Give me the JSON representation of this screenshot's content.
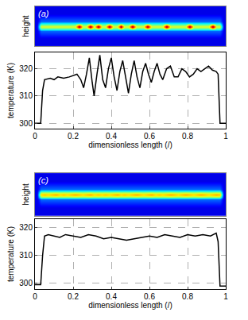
{
  "chart_data": [
    {
      "type": "heatmap",
      "annotation": "(a)",
      "ylabel": "height",
      "tick_labels": false,
      "xlim": [
        0,
        1
      ],
      "ylim": [
        0,
        1
      ],
      "zlim": [
        0,
        1
      ],
      "x": [
        0,
        0.02,
        0.04,
        0.06,
        0.08,
        0.1,
        0.12,
        0.14,
        0.16,
        0.18,
        0.2,
        0.22,
        0.24,
        0.26,
        0.28,
        0.3,
        0.32,
        0.34,
        0.36,
        0.38,
        0.4,
        0.42,
        0.44,
        0.46,
        0.48,
        0.5,
        0.52,
        0.54,
        0.56,
        0.58,
        0.6,
        0.62,
        0.64,
        0.66,
        0.68,
        0.7,
        0.72,
        0.74,
        0.76,
        0.78,
        0.8,
        0.82,
        0.84,
        0.86,
        0.88,
        0.9,
        0.92,
        0.94,
        0.96,
        0.98,
        1
      ],
      "y": [
        0,
        0.38,
        0.45,
        0.55,
        0.62,
        1
      ],
      "cells": [
        [
          0.1,
          0.1,
          0.1,
          0.1,
          0.1,
          0.1,
          0.1,
          0.1,
          0.1,
          0.1,
          0.1,
          0.1,
          0.1,
          0.1,
          0.1,
          0.1,
          0.1,
          0.1,
          0.1,
          0.1,
          0.1,
          0.1,
          0.1,
          0.1,
          0.1,
          0.1,
          0.1,
          0.1,
          0.1,
          0.1,
          0.1,
          0.1,
          0.1,
          0.1,
          0.1,
          0.1,
          0.1,
          0.1,
          0.1,
          0.1,
          0.1,
          0.1,
          0.1,
          0.1,
          0.1,
          0.1,
          0.1,
          0.1,
          0.1,
          0.1
        ],
        [
          0.1,
          0.35,
          0.35,
          0.35,
          0.35,
          0.35,
          0.35,
          0.35,
          0.35,
          0.35,
          0.35,
          0.35,
          0.35,
          0.35,
          0.35,
          0.35,
          0.35,
          0.35,
          0.35,
          0.35,
          0.35,
          0.35,
          0.35,
          0.35,
          0.35,
          0.35,
          0.35,
          0.35,
          0.35,
          0.35,
          0.35,
          0.35,
          0.35,
          0.35,
          0.35,
          0.35,
          0.35,
          0.35,
          0.35,
          0.35,
          0.35,
          0.35,
          0.35,
          0.35,
          0.35,
          0.35,
          0.35,
          0.35,
          0.35,
          0.1
        ],
        [
          0.1,
          0.6,
          0.6,
          0.6,
          0.6,
          0.6,
          0.6,
          0.6,
          0.6,
          0.6,
          0.6,
          1,
          0.6,
          0.6,
          1,
          0.6,
          1,
          0.6,
          0.6,
          1,
          0.6,
          0.6,
          1,
          0.6,
          0.6,
          1,
          0.6,
          0.6,
          0.6,
          1,
          0.6,
          0.6,
          0.6,
          0.6,
          1,
          0.6,
          0.6,
          0.6,
          0.6,
          0.6,
          1,
          0.6,
          0.6,
          0.6,
          0.6,
          0.6,
          1,
          0.6,
          0.6,
          0.1
        ],
        [
          0.1,
          0.35,
          0.35,
          0.35,
          0.35,
          0.35,
          0.35,
          0.35,
          0.35,
          0.35,
          0.35,
          0.35,
          0.35,
          0.35,
          0.35,
          0.35,
          0.35,
          0.35,
          0.35,
          0.35,
          0.35,
          0.35,
          0.35,
          0.35,
          0.35,
          0.35,
          0.35,
          0.35,
          0.35,
          0.35,
          0.35,
          0.35,
          0.35,
          0.35,
          0.35,
          0.35,
          0.35,
          0.35,
          0.35,
          0.35,
          0.35,
          0.35,
          0.35,
          0.35,
          0.35,
          0.35,
          0.35,
          0.35,
          0.35,
          0.1
        ],
        [
          0.1,
          0.1,
          0.1,
          0.1,
          0.1,
          0.1,
          0.1,
          0.1,
          0.1,
          0.1,
          0.1,
          0.1,
          0.1,
          0.1,
          0.1,
          0.1,
          0.1,
          0.1,
          0.1,
          0.1,
          0.1,
          0.1,
          0.1,
          0.1,
          0.1,
          0.1,
          0.1,
          0.1,
          0.1,
          0.1,
          0.1,
          0.1,
          0.1,
          0.1,
          0.1,
          0.1,
          0.1,
          0.1,
          0.1,
          0.1,
          0.1,
          0.1,
          0.1,
          0.1,
          0.1,
          0.1,
          0.1,
          0.1,
          0.1,
          0.1
        ]
      ]
    },
    {
      "type": "line",
      "xlabel": "dimensionless length (/)",
      "ylabel": "temperature (K)",
      "color": "#000000",
      "grid": true,
      "xlim": [
        0,
        1
      ],
      "ylim": [
        298,
        326
      ],
      "xticks": [
        0,
        0.2,
        0.4,
        0.6,
        0.8,
        1
      ],
      "yticks": [
        300,
        310,
        320
      ],
      "x": [
        0,
        0.03,
        0.04,
        0.05,
        0.08,
        0.1,
        0.12,
        0.15,
        0.18,
        0.2,
        0.22,
        0.24,
        0.255,
        0.27,
        0.285,
        0.3,
        0.31,
        0.325,
        0.34,
        0.355,
        0.37,
        0.385,
        0.4,
        0.415,
        0.43,
        0.445,
        0.46,
        0.475,
        0.49,
        0.505,
        0.52,
        0.535,
        0.55,
        0.565,
        0.58,
        0.595,
        0.61,
        0.625,
        0.64,
        0.655,
        0.67,
        0.69,
        0.71,
        0.73,
        0.75,
        0.77,
        0.79,
        0.81,
        0.83,
        0.85,
        0.87,
        0.89,
        0.91,
        0.93,
        0.95,
        0.96,
        0.965,
        0.97,
        1
      ],
      "values": [
        300,
        300,
        312,
        316,
        316.5,
        316,
        317,
        316.5,
        317,
        317.5,
        318,
        316,
        313,
        318,
        324,
        315,
        310,
        318,
        325,
        316,
        313,
        320,
        324,
        317,
        312,
        319,
        323,
        317,
        311,
        318,
        323,
        317,
        313,
        319,
        322,
        318,
        315,
        319,
        322,
        318,
        316,
        320,
        321,
        317,
        317,
        320,
        319,
        317,
        318,
        320,
        319,
        320,
        321,
        319.5,
        319,
        318,
        305,
        300,
        300
      ]
    },
    {
      "type": "heatmap",
      "annotation": "(c)",
      "ylabel": "height",
      "tick_labels": false,
      "xlim": [
        0,
        1
      ],
      "ylim": [
        0,
        1
      ],
      "zlim": [
        0,
        1
      ],
      "x": [
        0,
        0.02,
        0.04,
        0.06,
        0.08,
        0.1,
        0.12,
        0.14,
        0.16,
        0.18,
        0.2,
        0.22,
        0.24,
        0.26,
        0.28,
        0.3,
        0.32,
        0.34,
        0.36,
        0.38,
        0.4,
        0.42,
        0.44,
        0.46,
        0.48,
        0.5,
        0.52,
        0.54,
        0.56,
        0.58,
        0.6,
        0.62,
        0.64,
        0.66,
        0.68,
        0.7,
        0.72,
        0.74,
        0.76,
        0.78,
        0.8,
        0.82,
        0.84,
        0.86,
        0.88,
        0.9,
        0.92,
        0.94,
        0.96,
        0.98,
        1
      ],
      "y": [
        0,
        0.38,
        0.45,
        0.55,
        0.62,
        1
      ],
      "cells": [
        [
          0.1,
          0.1,
          0.1,
          0.1,
          0.1,
          0.1,
          0.1,
          0.1,
          0.1,
          0.1,
          0.1,
          0.1,
          0.1,
          0.1,
          0.1,
          0.1,
          0.1,
          0.1,
          0.1,
          0.1,
          0.1,
          0.1,
          0.1,
          0.1,
          0.1,
          0.1,
          0.1,
          0.1,
          0.1,
          0.1,
          0.1,
          0.1,
          0.1,
          0.1,
          0.1,
          0.1,
          0.1,
          0.1,
          0.1,
          0.1,
          0.1,
          0.1,
          0.1,
          0.1,
          0.1,
          0.1,
          0.1,
          0.1,
          0.1,
          0.1
        ],
        [
          0.1,
          0.35,
          0.35,
          0.35,
          0.35,
          0.35,
          0.35,
          0.35,
          0.35,
          0.35,
          0.35,
          0.35,
          0.35,
          0.35,
          0.35,
          0.35,
          0.35,
          0.35,
          0.35,
          0.35,
          0.35,
          0.35,
          0.35,
          0.35,
          0.35,
          0.35,
          0.35,
          0.35,
          0.35,
          0.35,
          0.35,
          0.35,
          0.35,
          0.35,
          0.35,
          0.35,
          0.35,
          0.35,
          0.35,
          0.35,
          0.35,
          0.35,
          0.35,
          0.35,
          0.35,
          0.35,
          0.35,
          0.35,
          0.35,
          0.1
        ],
        [
          0.1,
          0.68,
          0.7,
          0.68,
          0.7,
          0.72,
          0.68,
          0.7,
          0.68,
          0.7,
          0.72,
          0.7,
          0.68,
          0.7,
          0.72,
          0.68,
          0.7,
          0.68,
          0.7,
          0.68,
          0.7,
          0.72,
          0.68,
          0.7,
          0.68,
          0.7,
          0.72,
          0.7,
          0.68,
          0.7,
          0.72,
          0.68,
          0.7,
          0.68,
          0.7,
          0.72,
          0.7,
          0.68,
          0.7,
          0.72,
          0.7,
          0.68,
          0.7,
          0.72,
          0.7,
          0.68,
          0.7,
          0.72,
          0.7,
          0.1
        ],
        [
          0.1,
          0.35,
          0.35,
          0.35,
          0.35,
          0.35,
          0.35,
          0.35,
          0.35,
          0.35,
          0.35,
          0.35,
          0.35,
          0.35,
          0.35,
          0.35,
          0.35,
          0.35,
          0.35,
          0.35,
          0.35,
          0.35,
          0.35,
          0.35,
          0.35,
          0.35,
          0.35,
          0.35,
          0.35,
          0.35,
          0.35,
          0.35,
          0.35,
          0.35,
          0.35,
          0.35,
          0.35,
          0.35,
          0.35,
          0.35,
          0.35,
          0.35,
          0.35,
          0.35,
          0.35,
          0.35,
          0.35,
          0.35,
          0.35,
          0.1
        ],
        [
          0.1,
          0.1,
          0.1,
          0.1,
          0.1,
          0.1,
          0.1,
          0.1,
          0.1,
          0.1,
          0.1,
          0.1,
          0.1,
          0.1,
          0.1,
          0.1,
          0.1,
          0.1,
          0.1,
          0.1,
          0.1,
          0.1,
          0.1,
          0.1,
          0.1,
          0.1,
          0.1,
          0.1,
          0.1,
          0.1,
          0.1,
          0.1,
          0.1,
          0.1,
          0.1,
          0.1,
          0.1,
          0.1,
          0.1,
          0.1,
          0.1,
          0.1,
          0.1,
          0.1,
          0.1,
          0.1,
          0.1,
          0.1,
          0.1,
          0.1
        ]
      ]
    },
    {
      "type": "line",
      "xlabel": "dimensionless length (/)",
      "ylabel": "temperature (K)",
      "color": "#000000",
      "grid": true,
      "xlim": [
        0,
        1
      ],
      "ylim": [
        298,
        323
      ],
      "xticks": [
        0,
        0.2,
        0.4,
        0.6,
        0.8,
        1
      ],
      "yticks": [
        300,
        310,
        320
      ],
      "x": [
        0,
        0.03,
        0.04,
        0.05,
        0.07,
        0.1,
        0.13,
        0.16,
        0.2,
        0.24,
        0.28,
        0.32,
        0.36,
        0.4,
        0.44,
        0.48,
        0.52,
        0.56,
        0.6,
        0.64,
        0.68,
        0.72,
        0.76,
        0.8,
        0.84,
        0.88,
        0.92,
        0.95,
        0.96,
        0.97,
        1
      ],
      "values": [
        299.5,
        299.5,
        310,
        317,
        317.5,
        317,
        316.5,
        317.5,
        317,
        316.5,
        317.5,
        317,
        316,
        316.5,
        316,
        315.5,
        316,
        316.5,
        317,
        316.5,
        317.5,
        317,
        316.5,
        317.5,
        317,
        317.5,
        317,
        318,
        315,
        299,
        299
      ]
    }
  ]
}
